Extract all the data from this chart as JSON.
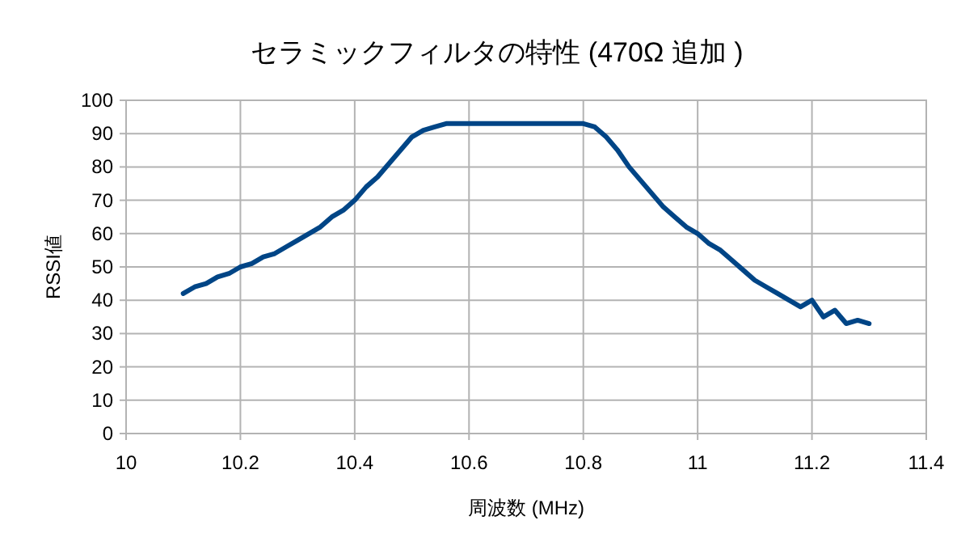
{
  "chart_data": {
    "type": "line",
    "title": "セラミックフィルタの特性 (470Ω 追加 )",
    "xlabel": "周波数 (MHz)",
    "ylabel": "RSSI値",
    "x": [
      10.1,
      10.12,
      10.14,
      10.16,
      10.18,
      10.2,
      10.22,
      10.24,
      10.26,
      10.28,
      10.3,
      10.32,
      10.34,
      10.36,
      10.38,
      10.4,
      10.42,
      10.44,
      10.46,
      10.48,
      10.5,
      10.52,
      10.54,
      10.56,
      10.6,
      10.7,
      10.8,
      10.82,
      10.84,
      10.86,
      10.88,
      10.9,
      10.92,
      10.94,
      10.96,
      10.98,
      11.0,
      11.02,
      11.04,
      11.06,
      11.08,
      11.1,
      11.12,
      11.14,
      11.16,
      11.18,
      11.2,
      11.22,
      11.24,
      11.26,
      11.28,
      11.3
    ],
    "series": [
      {
        "color": "#004586",
        "values": [
          42,
          44,
          45,
          47,
          48,
          50,
          51,
          53,
          54,
          56,
          58,
          60,
          62,
          65,
          67,
          70,
          74,
          77,
          81,
          85,
          89,
          91,
          92,
          93,
          93,
          93,
          93,
          92,
          89,
          85,
          80,
          76,
          72,
          68,
          65,
          62,
          60,
          57,
          55,
          52,
          49,
          46,
          44,
          42,
          40,
          38,
          40,
          35,
          37,
          33,
          34,
          33
        ]
      }
    ],
    "xlim": [
      10,
      11.4
    ],
    "xticks": [
      10,
      10.2,
      10.4,
      10.6,
      10.8,
      11,
      11.2,
      11.4
    ],
    "ylim": [
      0,
      100
    ],
    "yticks": [
      0,
      10,
      20,
      30,
      40,
      50,
      60,
      70,
      80,
      90,
      100
    ],
    "grid": true,
    "marker": "none",
    "line_style": "solid"
  }
}
